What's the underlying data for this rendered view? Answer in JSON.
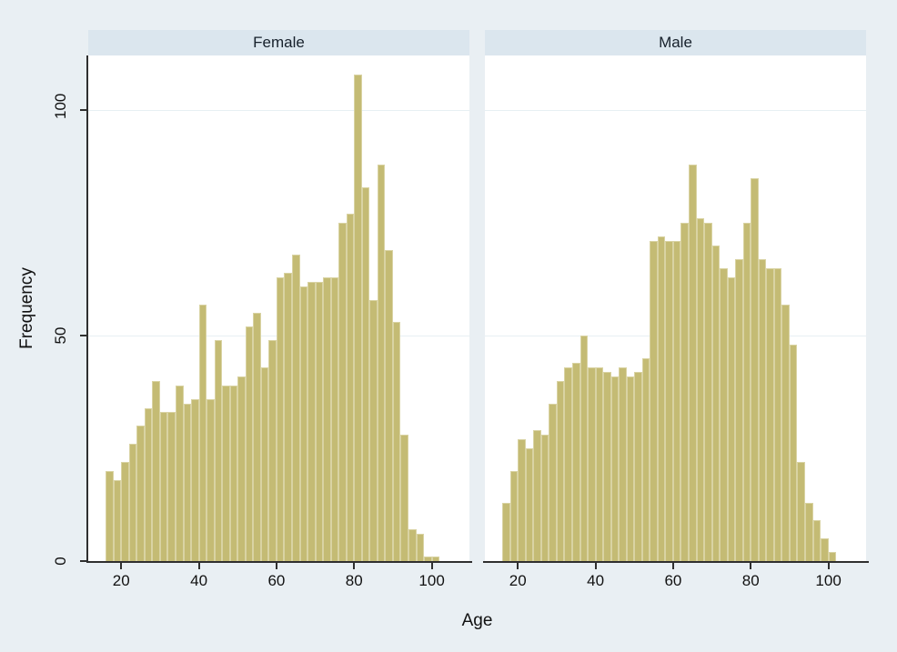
{
  "figure": {
    "background": "#e9eff3",
    "plot_background": "#ffffff",
    "strip_background": "#dbe6ee",
    "bar_fill": "#c4bb74",
    "bar_outline": "#d9d3a3",
    "gridline_color": "#e7f0f3",
    "axis_color": "#2f2f2f",
    "text_color": "#111111"
  },
  "chart_data": {
    "type": "bar",
    "subtype": "histogram-by-group",
    "title": "",
    "xlabel": "Age",
    "ylabel": "Frequency",
    "bin_start": 16,
    "bin_width": 2,
    "x_ticks": [
      20,
      40,
      60,
      80,
      100
    ],
    "y_ticks": [
      0,
      50,
      100
    ],
    "xlim": [
      11.5,
      109.7
    ],
    "ylim": [
      0,
      112.2
    ],
    "grid": "horizontal-only",
    "legend_position": "none",
    "panels": [
      {
        "title": "Female",
        "bin_start_ages": [
          16,
          18,
          20,
          22,
          24,
          26,
          28,
          30,
          32,
          34,
          36,
          38,
          40,
          42,
          44,
          46,
          48,
          50,
          52,
          54,
          56,
          58,
          60,
          62,
          64,
          66,
          68,
          70,
          72,
          74,
          76,
          78,
          80,
          82,
          84,
          86,
          88,
          90,
          92,
          94,
          96,
          98,
          100
        ],
        "frequencies": [
          20,
          18,
          22,
          26,
          30,
          34,
          40,
          33,
          33,
          39,
          35,
          36,
          57,
          36,
          49,
          39,
          39,
          41,
          52,
          55,
          43,
          49,
          63,
          64,
          68,
          61,
          62,
          62,
          63,
          63,
          75,
          77,
          108,
          83,
          58,
          88,
          69,
          53,
          28,
          7,
          6,
          1,
          1
        ]
      },
      {
        "title": "Male",
        "bin_start_ages": [
          16,
          18,
          20,
          22,
          24,
          26,
          28,
          30,
          32,
          34,
          36,
          38,
          40,
          42,
          44,
          46,
          48,
          50,
          52,
          54,
          56,
          58,
          60,
          62,
          64,
          66,
          68,
          70,
          72,
          74,
          76,
          78,
          80,
          82,
          84,
          86,
          88,
          90,
          92,
          94,
          96,
          98,
          100
        ],
        "frequencies": [
          13,
          20,
          27,
          25,
          29,
          28,
          35,
          40,
          43,
          44,
          50,
          43,
          43,
          42,
          41,
          43,
          41,
          42,
          45,
          71,
          72,
          71,
          71,
          75,
          88,
          76,
          75,
          70,
          65,
          63,
          67,
          75,
          85,
          67,
          65,
          65,
          57,
          48,
          22,
          13,
          9,
          5,
          2
        ]
      }
    ]
  }
}
